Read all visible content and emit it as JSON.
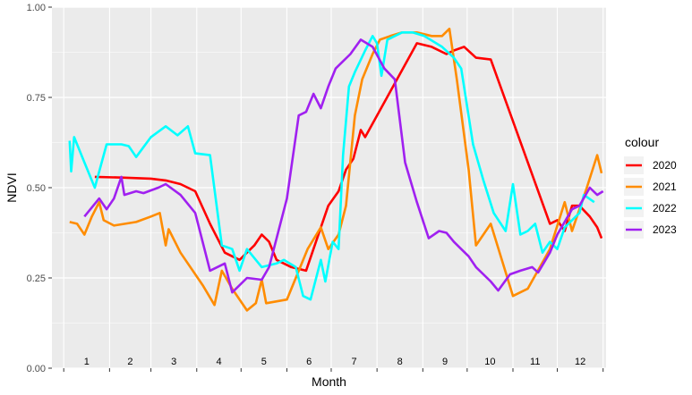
{
  "chart_data": {
    "type": "line",
    "xlabel": "Month",
    "ylabel": "NDVI",
    "xlim": [
      1,
      366
    ],
    "ylim": [
      0,
      1
    ],
    "month_labels": [
      "1",
      "2",
      "3",
      "4",
      "5",
      "6",
      "7",
      "8",
      "9",
      "10",
      "11",
      "12"
    ],
    "y_ticks": [
      0,
      0.25,
      0.5,
      0.75,
      1
    ],
    "y_tick_labels": [
      "0.00",
      "0.25",
      "0.50",
      "0.75",
      "1.00"
    ],
    "grid": true,
    "legend_title": "colour",
    "legend_position": "right",
    "series": [
      {
        "name": "2020",
        "color": "#ff0000",
        "points": [
          [
            22,
            0.53
          ],
          [
            40,
            0.528
          ],
          [
            60,
            0.525
          ],
          [
            70,
            0.52
          ],
          [
            80,
            0.51
          ],
          [
            90,
            0.49
          ],
          [
            100,
            0.4
          ],
          [
            110,
            0.32
          ],
          [
            120,
            0.3
          ],
          [
            130,
            0.34
          ],
          [
            135,
            0.37
          ],
          [
            140,
            0.35
          ],
          [
            145,
            0.3
          ],
          [
            155,
            0.28
          ],
          [
            165,
            0.27
          ],
          [
            180,
            0.45
          ],
          [
            187,
            0.49
          ],
          [
            192,
            0.55
          ],
          [
            197,
            0.58
          ],
          [
            202,
            0.66
          ],
          [
            205,
            0.64
          ],
          [
            240,
            0.9
          ],
          [
            250,
            0.89
          ],
          [
            260,
            0.87
          ],
          [
            265,
            0.88
          ],
          [
            272,
            0.89
          ],
          [
            280,
            0.86
          ],
          [
            290,
            0.855
          ],
          [
            330,
            0.4
          ],
          [
            335,
            0.41
          ],
          [
            340,
            0.38
          ],
          [
            345,
            0.45
          ],
          [
            350,
            0.45
          ],
          [
            357,
            0.42
          ],
          [
            362,
            0.39
          ],
          [
            365,
            0.36
          ]
        ]
      },
      {
        "name": "2021",
        "color": "#ff8c00",
        "points": [
          [
            5,
            0.405
          ],
          [
            10,
            0.4
          ],
          [
            15,
            0.37
          ],
          [
            20,
            0.42
          ],
          [
            25,
            0.46
          ],
          [
            28,
            0.41
          ],
          [
            35,
            0.395
          ],
          [
            50,
            0.405
          ],
          [
            60,
            0.42
          ],
          [
            66,
            0.43
          ],
          [
            70,
            0.34
          ],
          [
            72,
            0.385
          ],
          [
            80,
            0.32
          ],
          [
            95,
            0.23
          ],
          [
            103,
            0.175
          ],
          [
            108,
            0.27
          ],
          [
            115,
            0.22
          ],
          [
            125,
            0.16
          ],
          [
            131,
            0.18
          ],
          [
            135,
            0.245
          ],
          [
            138,
            0.18
          ],
          [
            152,
            0.19
          ],
          [
            166,
            0.33
          ],
          [
            175,
            0.39
          ],
          [
            180,
            0.33
          ],
          [
            187,
            0.37
          ],
          [
            192,
            0.45
          ],
          [
            198,
            0.7
          ],
          [
            203,
            0.8
          ],
          [
            210,
            0.87
          ],
          [
            215,
            0.91
          ],
          [
            222,
            0.92
          ],
          [
            230,
            0.93
          ],
          [
            240,
            0.93
          ],
          [
            250,
            0.92
          ],
          [
            257,
            0.92
          ],
          [
            262,
            0.94
          ],
          [
            267,
            0.8
          ],
          [
            275,
            0.55
          ],
          [
            280,
            0.34
          ],
          [
            290,
            0.4
          ],
          [
            305,
            0.2
          ],
          [
            315,
            0.22
          ],
          [
            330,
            0.33
          ],
          [
            340,
            0.46
          ],
          [
            345,
            0.38
          ],
          [
            355,
            0.5
          ],
          [
            362,
            0.59
          ],
          [
            365,
            0.54
          ]
        ]
      },
      {
        "name": "2022",
        "color": "#00ffff",
        "points": [
          [
            5,
            0.63
          ],
          [
            6,
            0.545
          ],
          [
            8,
            0.64
          ],
          [
            15,
            0.57
          ],
          [
            22,
            0.5
          ],
          [
            30,
            0.62
          ],
          [
            40,
            0.62
          ],
          [
            45,
            0.615
          ],
          [
            50,
            0.585
          ],
          [
            60,
            0.64
          ],
          [
            70,
            0.67
          ],
          [
            78,
            0.645
          ],
          [
            85,
            0.67
          ],
          [
            90,
            0.595
          ],
          [
            100,
            0.59
          ],
          [
            108,
            0.34
          ],
          [
            115,
            0.33
          ],
          [
            120,
            0.27
          ],
          [
            125,
            0.33
          ],
          [
            135,
            0.28
          ],
          [
            145,
            0.29
          ],
          [
            150,
            0.3
          ],
          [
            158,
            0.28
          ],
          [
            163,
            0.2
          ],
          [
            168,
            0.19
          ],
          [
            175,
            0.3
          ],
          [
            178,
            0.24
          ],
          [
            183,
            0.35
          ],
          [
            187,
            0.33
          ],
          [
            190,
            0.59
          ],
          [
            194,
            0.78
          ],
          [
            198,
            0.82
          ],
          [
            205,
            0.88
          ],
          [
            210,
            0.92
          ],
          [
            213,
            0.9
          ],
          [
            216,
            0.81
          ],
          [
            220,
            0.91
          ],
          [
            225,
            0.92
          ],
          [
            230,
            0.93
          ],
          [
            237,
            0.93
          ],
          [
            245,
            0.92
          ],
          [
            257,
            0.89
          ],
          [
            265,
            0.86
          ],
          [
            270,
            0.83
          ],
          [
            278,
            0.62
          ],
          [
            285,
            0.52
          ],
          [
            292,
            0.43
          ],
          [
            300,
            0.38
          ],
          [
            305,
            0.51
          ],
          [
            310,
            0.37
          ],
          [
            315,
            0.38
          ],
          [
            320,
            0.4
          ],
          [
            325,
            0.32
          ],
          [
            330,
            0.35
          ],
          [
            335,
            0.33
          ],
          [
            340,
            0.39
          ],
          [
            345,
            0.41
          ],
          [
            350,
            0.43
          ],
          [
            353,
            0.48
          ],
          [
            360,
            0.46
          ]
        ]
      },
      {
        "name": "2023",
        "color": "#a020f0",
        "points": [
          [
            15,
            0.42
          ],
          [
            25,
            0.47
          ],
          [
            30,
            0.44
          ],
          [
            35,
            0.47
          ],
          [
            40,
            0.53
          ],
          [
            42,
            0.48
          ],
          [
            50,
            0.49
          ],
          [
            55,
            0.485
          ],
          [
            65,
            0.5
          ],
          [
            70,
            0.51
          ],
          [
            80,
            0.48
          ],
          [
            90,
            0.43
          ],
          [
            100,
            0.27
          ],
          [
            110,
            0.29
          ],
          [
            115,
            0.21
          ],
          [
            125,
            0.25
          ],
          [
            135,
            0.245
          ],
          [
            140,
            0.28
          ],
          [
            152,
            0.47
          ],
          [
            160,
            0.7
          ],
          [
            165,
            0.71
          ],
          [
            170,
            0.76
          ],
          [
            175,
            0.72
          ],
          [
            180,
            0.78
          ],
          [
            185,
            0.83
          ],
          [
            195,
            0.87
          ],
          [
            202,
            0.91
          ],
          [
            210,
            0.89
          ],
          [
            218,
            0.83
          ],
          [
            225,
            0.8
          ],
          [
            232,
            0.57
          ],
          [
            240,
            0.46
          ],
          [
            248,
            0.36
          ],
          [
            255,
            0.38
          ],
          [
            260,
            0.375
          ],
          [
            265,
            0.35
          ],
          [
            270,
            0.33
          ],
          [
            275,
            0.31
          ],
          [
            280,
            0.28
          ],
          [
            290,
            0.24
          ],
          [
            295,
            0.215
          ],
          [
            303,
            0.26
          ],
          [
            310,
            0.27
          ],
          [
            318,
            0.28
          ],
          [
            322,
            0.265
          ],
          [
            330,
            0.32
          ],
          [
            335,
            0.37
          ],
          [
            345,
            0.44
          ],
          [
            350,
            0.45
          ],
          [
            357,
            0.5
          ],
          [
            362,
            0.48
          ],
          [
            366,
            0.49
          ]
        ]
      }
    ]
  }
}
